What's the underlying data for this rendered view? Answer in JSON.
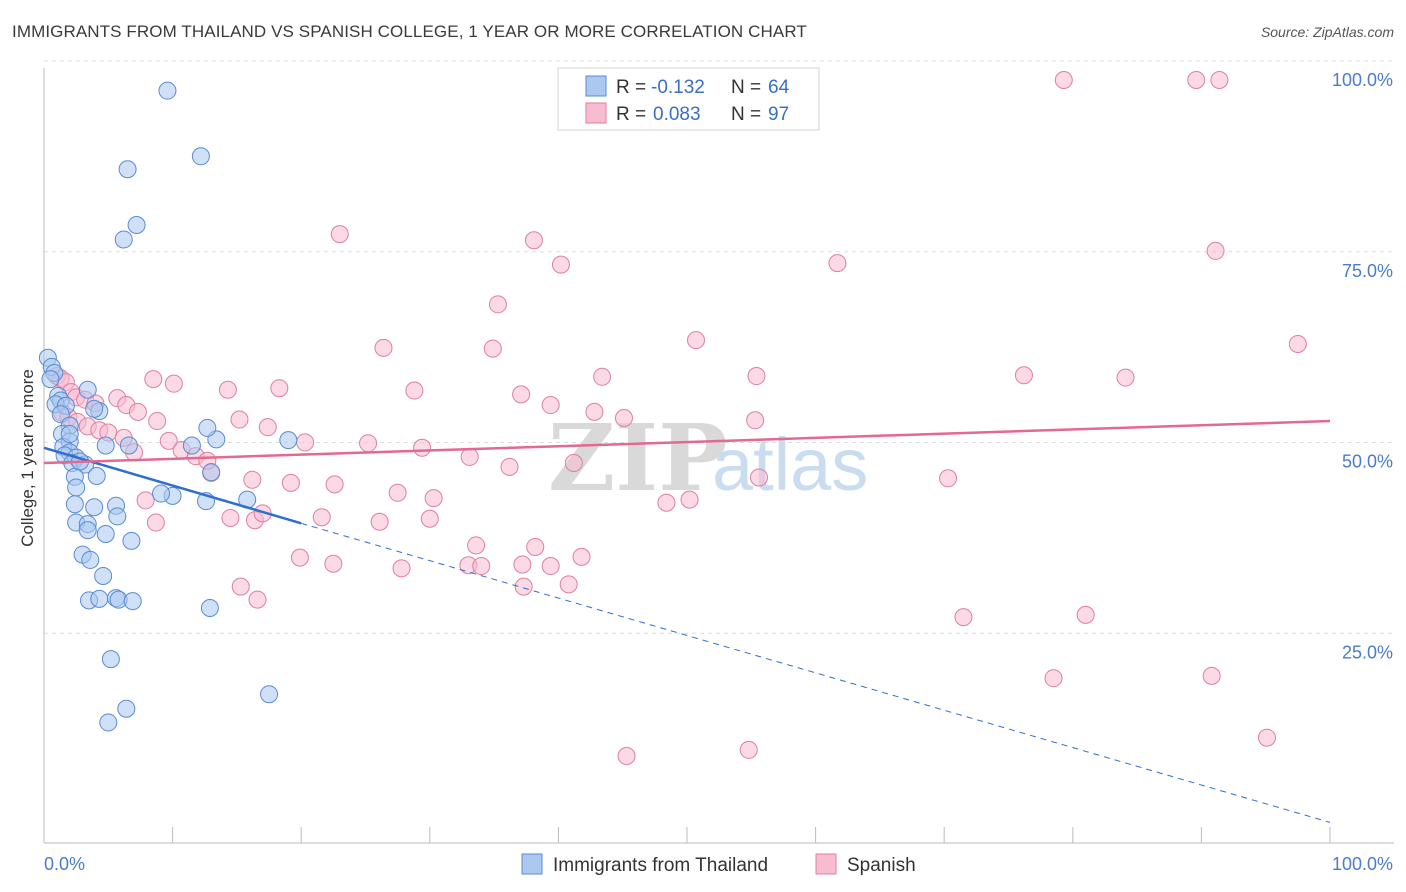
{
  "header": {
    "title": "IMMIGRANTS FROM THAILAND VS SPANISH COLLEGE, 1 YEAR OR MORE CORRELATION CHART",
    "source": "Source: ZipAtlas.com"
  },
  "watermark": {
    "zip": "ZIP",
    "atlas": "atlas"
  },
  "legend_top": {
    "rows": [
      {
        "r_label": "R =",
        "r_value": "-0.132",
        "n_label": "N =",
        "n_value": "64",
        "color": "#aac8f0",
        "stroke": "#5a8ad4"
      },
      {
        "r_label": "R =",
        "r_value": "0.083",
        "n_label": "N =",
        "n_value": "97",
        "color": "#f7bcd0",
        "stroke": "#e07ea0"
      }
    ]
  },
  "legend_bottom": [
    {
      "label": "Immigrants from Thailand",
      "color": "#aac8f0",
      "stroke": "#5a8ad4"
    },
    {
      "label": "Spanish",
      "color": "#f7bcd0",
      "stroke": "#e07ea0"
    }
  ],
  "chart_data": {
    "type": "scatter",
    "title": "IMMIGRANTS FROM THAILAND VS SPANISH COLLEGE, 1 YEAR OR MORE CORRELATION CHART",
    "xlabel": "",
    "ylabel": "College, 1 year or more",
    "xlim": [
      0,
      100
    ],
    "ylim": [
      0,
      100
    ],
    "x_tick_labels": [
      {
        "value": 0,
        "label": "0.0%"
      },
      {
        "value": 100,
        "label": "100.0%"
      }
    ],
    "y_tick_labels": [
      {
        "value": 25,
        "label": "25.0%"
      },
      {
        "value": 50,
        "label": "50.0%"
      },
      {
        "value": 75,
        "label": "75.0%"
      },
      {
        "value": 100,
        "label": "100.0%"
      }
    ],
    "grid": true,
    "colors": {
      "blue_fill": "#aac8f0",
      "blue_stroke": "#5a8ad4",
      "blue_line": "#2f6fd0",
      "pink_fill": "#f7bcd0",
      "pink_stroke": "#e07ea0",
      "pink_line": "#e4688f"
    },
    "series": [
      {
        "name": "Immigrants from Thailand",
        "points": [
          [
            0.3,
            63.6
          ],
          [
            0.6,
            62.4
          ],
          [
            0.8,
            61.6
          ],
          [
            0.5,
            60.8
          ],
          [
            1.1,
            58.6
          ],
          [
            1.3,
            58.0
          ],
          [
            0.9,
            57.5
          ],
          [
            1.7,
            57.3
          ],
          [
            1.3,
            56.2
          ],
          [
            2.0,
            54.7
          ],
          [
            1.4,
            53.6
          ],
          [
            2.0,
            52.6
          ],
          [
            1.5,
            51.9
          ],
          [
            2.0,
            51.2
          ],
          [
            1.6,
            50.8
          ],
          [
            2.5,
            50.5
          ],
          [
            2.2,
            49.8
          ],
          [
            3.2,
            49.6
          ],
          [
            2.4,
            48.0
          ],
          [
            2.5,
            46.6
          ],
          [
            2.4,
            44.4
          ],
          [
            3.9,
            44.0
          ],
          [
            2.5,
            42.0
          ],
          [
            3.4,
            41.8
          ],
          [
            3.4,
            41.0
          ],
          [
            4.8,
            40.5
          ],
          [
            5.6,
            44.2
          ],
          [
            5.7,
            42.8
          ],
          [
            6.8,
            39.6
          ],
          [
            3.0,
            37.8
          ],
          [
            3.6,
            37.1
          ],
          [
            4.6,
            35.0
          ],
          [
            3.5,
            31.8
          ],
          [
            4.3,
            32.0
          ],
          [
            5.6,
            32.1
          ],
          [
            5.8,
            31.9
          ],
          [
            6.9,
            31.7
          ],
          [
            5.2,
            24.1
          ],
          [
            6.4,
            17.6
          ],
          [
            5.0,
            15.8
          ],
          [
            9.6,
            98.6
          ],
          [
            12.2,
            90.0
          ],
          [
            6.5,
            88.3
          ],
          [
            7.2,
            81.0
          ],
          [
            6.2,
            79.1
          ],
          [
            3.4,
            59.4
          ],
          [
            4.3,
            56.6
          ],
          [
            4.8,
            52.1
          ],
          [
            6.6,
            52.1
          ],
          [
            10.0,
            45.5
          ],
          [
            9.1,
            45.8
          ],
          [
            11.5,
            52.1
          ],
          [
            13.4,
            52.9
          ],
          [
            12.7,
            54.4
          ],
          [
            13.0,
            48.6
          ],
          [
            12.6,
            44.8
          ],
          [
            15.8,
            45.0
          ],
          [
            12.9,
            30.8
          ],
          [
            19.0,
            52.8
          ],
          [
            17.5,
            19.5
          ],
          [
            3.9,
            56.9
          ],
          [
            2.8,
            50.0
          ],
          [
            4.1,
            48.1
          ],
          [
            2.0,
            53.6
          ]
        ]
      },
      {
        "name": "Spanish",
        "points": [
          [
            79.3,
            100.0
          ],
          [
            89.6,
            100.0
          ],
          [
            91.4,
            100.0
          ],
          [
            91.1,
            77.6
          ],
          [
            23.0,
            79.8
          ],
          [
            38.1,
            79.0
          ],
          [
            61.7,
            76.0
          ],
          [
            40.2,
            75.8
          ],
          [
            35.3,
            70.6
          ],
          [
            26.4,
            64.9
          ],
          [
            50.7,
            65.9
          ],
          [
            34.9,
            64.8
          ],
          [
            43.4,
            61.1
          ],
          [
            55.4,
            61.2
          ],
          [
            76.2,
            61.3
          ],
          [
            84.1,
            61.0
          ],
          [
            97.5,
            65.4
          ],
          [
            14.3,
            59.4
          ],
          [
            18.3,
            59.6
          ],
          [
            28.8,
            59.3
          ],
          [
            37.1,
            58.8
          ],
          [
            39.4,
            57.4
          ],
          [
            42.8,
            56.5
          ],
          [
            45.1,
            55.7
          ],
          [
            55.3,
            55.4
          ],
          [
            15.2,
            55.5
          ],
          [
            17.4,
            54.5
          ],
          [
            20.3,
            52.5
          ],
          [
            25.2,
            52.4
          ],
          [
            29.4,
            51.8
          ],
          [
            33.1,
            50.6
          ],
          [
            36.2,
            49.3
          ],
          [
            41.2,
            49.8
          ],
          [
            13.0,
            48.5
          ],
          [
            16.2,
            47.6
          ],
          [
            19.2,
            47.2
          ],
          [
            22.6,
            47.0
          ],
          [
            27.5,
            45.9
          ],
          [
            30.3,
            45.2
          ],
          [
            48.4,
            44.6
          ],
          [
            50.2,
            45.0
          ],
          [
            55.6,
            47.9
          ],
          [
            70.3,
            47.8
          ],
          [
            14.5,
            42.6
          ],
          [
            16.4,
            42.3
          ],
          [
            17.0,
            43.2
          ],
          [
            21.6,
            42.7
          ],
          [
            26.1,
            42.1
          ],
          [
            30.0,
            42.5
          ],
          [
            33.6,
            39.0
          ],
          [
            38.2,
            38.8
          ],
          [
            41.8,
            37.5
          ],
          [
            37.2,
            36.5
          ],
          [
            39.4,
            36.3
          ],
          [
            19.9,
            37.4
          ],
          [
            22.5,
            36.6
          ],
          [
            27.8,
            36.0
          ],
          [
            33.0,
            36.4
          ],
          [
            34.0,
            36.3
          ],
          [
            37.3,
            33.6
          ],
          [
            40.8,
            33.9
          ],
          [
            15.3,
            33.6
          ],
          [
            16.6,
            31.9
          ],
          [
            71.5,
            29.6
          ],
          [
            81.0,
            29.9
          ],
          [
            90.8,
            21.9
          ],
          [
            78.5,
            21.6
          ],
          [
            54.8,
            12.2
          ],
          [
            45.3,
            11.4
          ],
          [
            95.1,
            13.8
          ],
          [
            1.0,
            61.2
          ],
          [
            1.3,
            60.9
          ],
          [
            1.7,
            60.4
          ],
          [
            2.1,
            59.1
          ],
          [
            2.5,
            58.4
          ],
          [
            3.2,
            58.1
          ],
          [
            4.0,
            57.6
          ],
          [
            5.7,
            58.3
          ],
          [
            6.4,
            57.4
          ],
          [
            7.3,
            56.5
          ],
          [
            8.5,
            60.8
          ],
          [
            10.1,
            60.2
          ],
          [
            1.4,
            56.4
          ],
          [
            1.9,
            55.8
          ],
          [
            2.6,
            55.2
          ],
          [
            3.4,
            54.6
          ],
          [
            4.3,
            54.1
          ],
          [
            5.0,
            53.8
          ],
          [
            6.2,
            53.1
          ],
          [
            7.0,
            51.2
          ],
          [
            8.8,
            55.3
          ],
          [
            9.7,
            52.7
          ],
          [
            10.7,
            51.5
          ],
          [
            11.8,
            50.7
          ],
          [
            12.7,
            50.1
          ],
          [
            7.9,
            44.9
          ],
          [
            8.7,
            42.0
          ]
        ]
      }
    ],
    "trendlines": [
      {
        "series": "Immigrants from Thailand",
        "x": [
          0,
          20
        ],
        "y": [
          51.8,
          41.9
        ],
        "dashed_extension_to": [
          100,
          2.7
        ]
      },
      {
        "series": "Spanish",
        "x": [
          0,
          100
        ],
        "y": [
          49.8,
          55.3
        ]
      }
    ]
  }
}
